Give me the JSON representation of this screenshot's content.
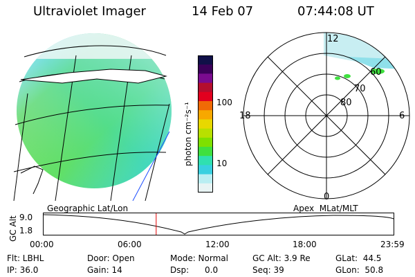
{
  "header": {
    "instrument": "Ultraviolet Imager",
    "date": "14 Feb 07",
    "time": "07:44:08 UT"
  },
  "colorbar": {
    "unit_label": "photon cm⁻²s⁻¹",
    "ticks": [
      "100",
      "10"
    ],
    "scale": "log",
    "colors": [
      "#101048",
      "#3b0059",
      "#7a0b8f",
      "#b40e2e",
      "#e2001e",
      "#f06a06",
      "#f7a800",
      "#e8d800",
      "#b8e000",
      "#7ee000",
      "#3fe03f",
      "#2fe0b0",
      "#38d0e0",
      "#b9eef2",
      "#e8f4f4"
    ]
  },
  "geo_panel": {
    "label": "Geographic Lat/Lon"
  },
  "polar_panel": {
    "label": "Apex  MLat/MLT",
    "mlt_labels": {
      "top": "12",
      "left": "18",
      "right": "6",
      "bottom": "0"
    },
    "ring_labels": [
      "60",
      "70",
      "80"
    ]
  },
  "timeline": {
    "ylabel": "GC Alt",
    "ymax": "9.0",
    "ymin": "1.8",
    "ticks": [
      "00:00",
      "06:00",
      "12:00",
      "18:00",
      "23:59"
    ],
    "current_time_hours": 7.73,
    "colors": {
      "marker": "#e00000"
    }
  },
  "footer": {
    "flt": "Flt: LBHL",
    "door": "Door: Open",
    "mode": "Mode: Normal",
    "gcalt": "GC Alt: 3.9 Re",
    "glat": "GLat:  44.5",
    "ip": "IP: 36.0",
    "gain": "Gain: 14",
    "dsp": "Dsp:      0.0",
    "seq": "Seq: 39",
    "glon": "GLon:  50.8"
  }
}
